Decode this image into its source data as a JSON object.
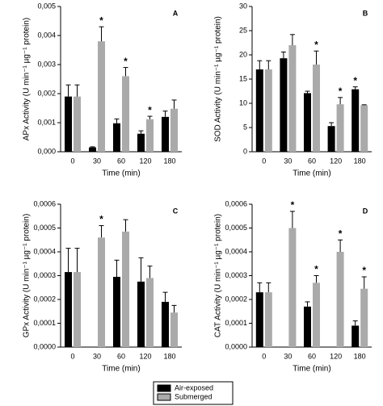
{
  "chart_data": [
    {
      "type": "bar",
      "panel_label": "A",
      "ylabel": "APx Activity (U min⁻¹ µg⁻¹ protein)",
      "xlabel": "Time (min)",
      "categories": [
        "0",
        "30",
        "60",
        "120",
        "180"
      ],
      "ylim": [
        0,
        0.005
      ],
      "yticks": [
        {
          "value": 0,
          "label": "0,000"
        },
        {
          "value": 0.001,
          "label": "0,001"
        },
        {
          "value": 0.002,
          "label": "0,002"
        },
        {
          "value": 0.003,
          "label": "0,003"
        },
        {
          "value": 0.004,
          "label": "0,004"
        },
        {
          "value": 0.005,
          "label": "0,005"
        }
      ],
      "series": [
        {
          "color": "#000000",
          "values": [
            0.0019,
            0.00015,
            0.00098,
            0.00062,
            0.0012
          ],
          "errors": [
            0.0004,
            2e-05,
            0.00015,
            0.0001,
            0.0002
          ],
          "significance": [
            null,
            null,
            null,
            null,
            null
          ]
        },
        {
          "color": "#aaaaaa",
          "values": [
            0.0019,
            0.0038,
            0.0026,
            0.00112,
            0.00148
          ],
          "errors": [
            0.0004,
            0.0005,
            0.0003,
            0.0001,
            0.0003
          ],
          "significance": [
            null,
            "*",
            "*",
            "*",
            null
          ]
        }
      ]
    },
    {
      "type": "bar",
      "panel_label": "B",
      "ylabel": "SOD Activity (U min⁻¹ µg⁻¹ protein)",
      "xlabel": "Time (min)",
      "categories": [
        "0",
        "30",
        "60",
        "120",
        "180"
      ],
      "ylim": [
        0,
        30
      ],
      "yticks": [
        0,
        5,
        10,
        15,
        20,
        25,
        30
      ],
      "series": [
        {
          "color": "#000000",
          "values": [
            17,
            19.3,
            12.1,
            5.3,
            12.9
          ],
          "errors": [
            1.8,
            1.3,
            0.4,
            0.7,
            0.5
          ],
          "significance": [
            null,
            null,
            null,
            null,
            "*"
          ]
        },
        {
          "color": "#aaaaaa",
          "values": [
            17,
            22,
            18,
            9.8,
            9.6
          ],
          "errors": [
            1.8,
            2.2,
            2.8,
            1.4,
            0.1
          ],
          "significance": [
            null,
            null,
            "*",
            "*",
            null
          ]
        }
      ]
    },
    {
      "type": "bar",
      "panel_label": "C",
      "ylabel": "GPx Activity (U min⁻¹ µg⁻¹ protein)",
      "xlabel": "Time (min)",
      "categories": [
        "0",
        "30",
        "60",
        "120",
        "180"
      ],
      "ylim": [
        0,
        0.0006
      ],
      "yticks": [
        {
          "value": 0,
          "label": "0,0000"
        },
        {
          "value": 0.0001,
          "label": "0,0001"
        },
        {
          "value": 0.0002,
          "label": "0,0002"
        },
        {
          "value": 0.0003,
          "label": "0,0003"
        },
        {
          "value": 0.0004,
          "label": "0,0004"
        },
        {
          "value": 0.0005,
          "label": "0,0005"
        },
        {
          "value": 0.0006,
          "label": "0,0006"
        }
      ],
      "series": [
        {
          "color": "#000000",
          "values": [
            0.000315,
            null,
            0.000295,
            0.000275,
            0.00019
          ],
          "errors": [
            0.0001,
            null,
            7e-05,
            0.0001,
            4e-05
          ],
          "significance": [
            null,
            null,
            null,
            null,
            null
          ]
        },
        {
          "color": "#aaaaaa",
          "values": [
            0.000315,
            0.00046,
            0.000485,
            0.00029,
            0.000145
          ],
          "errors": [
            0.0001,
            5e-05,
            5e-05,
            5e-05,
            3e-05
          ],
          "significance": [
            null,
            "*",
            null,
            null,
            null
          ]
        }
      ]
    },
    {
      "type": "bar",
      "panel_label": "D",
      "ylabel": "CAT Activity (U min⁻¹ µg⁻¹ protein)",
      "xlabel": "Time (min)",
      "categories": [
        "0",
        "30",
        "60",
        "120",
        "180"
      ],
      "ylim": [
        0,
        0.0006
      ],
      "yticks": [
        {
          "value": 0,
          "label": "0,0000"
        },
        {
          "value": 0.0001,
          "label": "0,0001"
        },
        {
          "value": 0.0002,
          "label": "0,0002"
        },
        {
          "value": 0.0003,
          "label": "0,0003"
        },
        {
          "value": 0.0004,
          "label": "0,0004"
        },
        {
          "value": 0.0005,
          "label": "0,0005"
        },
        {
          "value": 0.0006,
          "label": "0,0006"
        }
      ],
      "series": [
        {
          "color": "#000000",
          "values": [
            0.00023,
            null,
            0.00017,
            null,
            9e-05
          ],
          "errors": [
            4e-05,
            null,
            2e-05,
            null,
            2e-05
          ],
          "significance": [
            null,
            null,
            null,
            null,
            null
          ]
        },
        {
          "color": "#aaaaaa",
          "values": [
            0.00023,
            0.0005,
            0.00027,
            0.0004,
            0.000245
          ],
          "errors": [
            4e-05,
            7e-05,
            3e-05,
            5e-05,
            5e-05
          ],
          "significance": [
            null,
            "*",
            "*",
            "*",
            "*"
          ]
        }
      ]
    }
  ],
  "legend": {
    "position": "bottom",
    "entries": [
      {
        "name": "Air-exposed",
        "color": "#000000"
      },
      {
        "name": "Submerged",
        "color": "#aaaaaa"
      }
    ]
  }
}
